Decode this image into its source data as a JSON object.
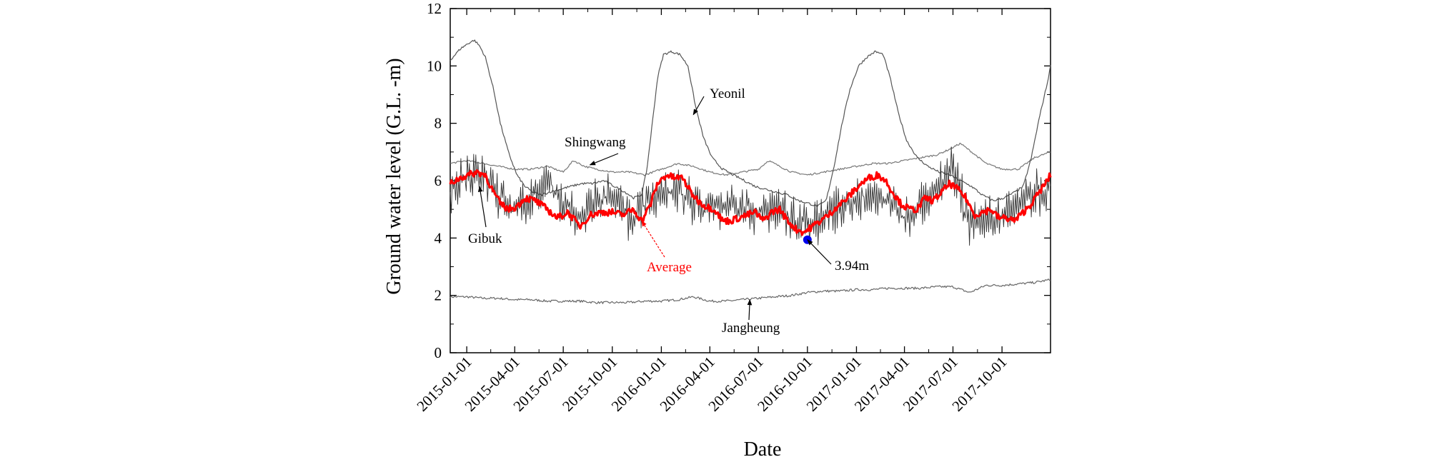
{
  "chart_data": {
    "type": "line",
    "title": "",
    "xlabel": "Date",
    "ylabel": "Ground water level (G.L. -m)",
    "ylim": [
      0,
      12
    ],
    "yticks": [
      0,
      2,
      4,
      6,
      8,
      10,
      12
    ],
    "xlim": [
      "2014-12-01",
      "2017-12-31"
    ],
    "xticks": [
      "2015-01-01",
      "2015-04-01",
      "2015-07-01",
      "2015-10-01",
      "2016-01-01",
      "2016-04-01",
      "2016-07-01",
      "2016-10-01",
      "2017-01-01",
      "2017-04-01",
      "2017-07-01",
      "2017-10-01"
    ],
    "series": [
      {
        "name": "Yeonil",
        "color": "#555555",
        "x": [
          "2014-12-01",
          "2014-12-20",
          "2015-01-05",
          "2015-01-15",
          "2015-01-25",
          "2015-02-05",
          "2015-02-20",
          "2015-03-05",
          "2015-03-20",
          "2015-04-05",
          "2015-04-20",
          "2015-05-05",
          "2015-05-20",
          "2015-06-05",
          "2015-06-25",
          "2015-07-15",
          "2015-08-05",
          "2015-08-25",
          "2015-09-15",
          "2015-10-05",
          "2015-10-25",
          "2015-11-10",
          "2015-11-25",
          "2015-12-05",
          "2015-12-15",
          "2015-12-25",
          "2016-01-05",
          "2016-01-20",
          "2016-02-05",
          "2016-02-20",
          "2016-03-05",
          "2016-03-20",
          "2016-04-05",
          "2016-04-25",
          "2016-05-15",
          "2016-06-05",
          "2016-06-25",
          "2016-07-15",
          "2016-08-05",
          "2016-08-25",
          "2016-09-15",
          "2016-10-05",
          "2016-10-20",
          "2016-11-05",
          "2016-11-20",
          "2016-12-05",
          "2016-12-20",
          "2017-01-05",
          "2017-01-20",
          "2017-02-05",
          "2017-02-20",
          "2017-03-05",
          "2017-03-20",
          "2017-04-05",
          "2017-04-25",
          "2017-05-15",
          "2017-06-05",
          "2017-06-25",
          "2017-07-15",
          "2017-08-05",
          "2017-08-25",
          "2017-09-15",
          "2017-10-05",
          "2017-10-25",
          "2017-11-10",
          "2017-11-25",
          "2017-12-10",
          "2017-12-25",
          "2017-12-31"
        ],
        "values": [
          10.2,
          10.6,
          10.8,
          10.9,
          10.7,
          10.3,
          9.2,
          8.0,
          7.0,
          6.2,
          5.8,
          5.6,
          5.5,
          5.6,
          5.7,
          5.8,
          5.9,
          5.9,
          6.0,
          5.8,
          5.6,
          5.4,
          5.5,
          6.4,
          8.0,
          9.6,
          10.4,
          10.5,
          10.4,
          10.0,
          8.6,
          7.5,
          6.8,
          6.4,
          6.2,
          6.0,
          5.8,
          5.7,
          5.6,
          5.5,
          5.3,
          5.2,
          5.1,
          5.3,
          6.5,
          8.0,
          9.2,
          10.0,
          10.3,
          10.5,
          10.4,
          9.6,
          8.4,
          7.4,
          6.8,
          6.5,
          6.3,
          6.2,
          6.0,
          5.8,
          5.5,
          5.3,
          5.4,
          5.6,
          5.8,
          6.8,
          8.2,
          9.4,
          10.0
        ]
      },
      {
        "name": "Shingwang",
        "color": "#777777",
        "x": [
          "2014-12-01",
          "2015-01-01",
          "2015-02-01",
          "2015-03-01",
          "2015-04-01",
          "2015-05-01",
          "2015-06-01",
          "2015-07-01",
          "2015-07-20",
          "2015-08-10",
          "2015-09-01",
          "2015-10-01",
          "2015-11-01",
          "2015-12-01",
          "2016-01-01",
          "2016-02-01",
          "2016-03-01",
          "2016-04-01",
          "2016-05-01",
          "2016-06-01",
          "2016-07-01",
          "2016-07-20",
          "2016-08-10",
          "2016-09-01",
          "2016-10-01",
          "2016-11-01",
          "2016-12-01",
          "2017-01-01",
          "2017-02-01",
          "2017-03-01",
          "2017-04-01",
          "2017-05-01",
          "2017-06-01",
          "2017-06-25",
          "2017-07-15",
          "2017-08-05",
          "2017-09-01",
          "2017-10-01",
          "2017-11-01",
          "2017-12-01",
          "2017-12-31"
        ],
        "values": [
          6.6,
          6.7,
          6.6,
          6.5,
          6.4,
          6.4,
          6.5,
          6.3,
          6.7,
          6.5,
          6.4,
          6.3,
          6.3,
          6.2,
          6.4,
          6.6,
          6.5,
          6.3,
          6.2,
          6.3,
          6.4,
          6.7,
          6.5,
          6.3,
          6.2,
          6.3,
          6.4,
          6.5,
          6.6,
          6.6,
          6.7,
          6.8,
          6.9,
          7.1,
          7.3,
          7.0,
          6.6,
          6.4,
          6.4,
          6.8,
          7.0
        ]
      },
      {
        "name": "Gibuk",
        "color": "#333333",
        "x": [
          "2014-12-01",
          "2015-01-01",
          "2015-02-01",
          "2015-03-01",
          "2015-04-01",
          "2015-05-01",
          "2015-06-01",
          "2015-07-01",
          "2015-08-01",
          "2015-09-01",
          "2015-10-01",
          "2015-11-01",
          "2015-12-01",
          "2016-01-01",
          "2016-02-01",
          "2016-03-01",
          "2016-04-01",
          "2016-05-01",
          "2016-06-01",
          "2016-07-01",
          "2016-08-01",
          "2016-09-01",
          "2016-10-01",
          "2016-11-01",
          "2016-12-01",
          "2017-01-01",
          "2017-02-01",
          "2017-03-01",
          "2017-04-01",
          "2017-05-01",
          "2017-06-01",
          "2017-07-01",
          "2017-08-01",
          "2017-09-01",
          "2017-10-01",
          "2017-11-01",
          "2017-12-01",
          "2017-12-31"
        ],
        "values": [
          5.7,
          6.0,
          6.2,
          5.5,
          5.0,
          5.3,
          6.1,
          5.2,
          4.7,
          5.3,
          5.6,
          4.8,
          5.2,
          5.6,
          5.6,
          5.3,
          5.0,
          5.1,
          5.2,
          4.9,
          5.0,
          4.6,
          4.4,
          4.8,
          5.0,
          5.3,
          5.4,
          5.3,
          4.7,
          5.2,
          5.6,
          6.5,
          4.4,
          4.8,
          4.9,
          5.2,
          5.5,
          5.8
        ]
      },
      {
        "name": "Average",
        "color": "#ff0000",
        "x": [
          "2014-12-01",
          "2014-12-20",
          "2015-01-05",
          "2015-01-20",
          "2015-02-05",
          "2015-02-20",
          "2015-03-05",
          "2015-03-20",
          "2015-04-05",
          "2015-04-20",
          "2015-05-10",
          "2015-06-01",
          "2015-06-20",
          "2015-07-10",
          "2015-08-01",
          "2015-08-20",
          "2015-09-10",
          "2015-10-01",
          "2015-10-20",
          "2015-11-10",
          "2015-11-25",
          "2015-12-10",
          "2015-12-25",
          "2016-01-10",
          "2016-01-25",
          "2016-02-10",
          "2016-02-25",
          "2016-03-10",
          "2016-03-25",
          "2016-04-10",
          "2016-04-25",
          "2016-05-10",
          "2016-05-25",
          "2016-06-10",
          "2016-06-25",
          "2016-07-10",
          "2016-07-25",
          "2016-08-10",
          "2016-08-25",
          "2016-09-10",
          "2016-09-25",
          "2016-10-10",
          "2016-10-25",
          "2016-11-10",
          "2016-11-25",
          "2016-12-10",
          "2016-12-25",
          "2017-01-10",
          "2017-01-25",
          "2017-02-10",
          "2017-02-25",
          "2017-03-10",
          "2017-03-25",
          "2017-04-10",
          "2017-04-25",
          "2017-05-10",
          "2017-05-25",
          "2017-06-10",
          "2017-06-25",
          "2017-07-10",
          "2017-07-25",
          "2017-08-10",
          "2017-08-25",
          "2017-09-10",
          "2017-09-25",
          "2017-10-10",
          "2017-10-25",
          "2017-11-10",
          "2017-11-25",
          "2017-12-10",
          "2017-12-25",
          "2017-12-31"
        ],
        "values": [
          5.9,
          6.1,
          6.2,
          6.3,
          6.2,
          5.6,
          5.2,
          5.0,
          5.1,
          5.4,
          5.3,
          5.0,
          4.7,
          4.9,
          4.4,
          4.8,
          4.9,
          4.9,
          4.8,
          5.0,
          4.6,
          5.1,
          5.9,
          6.2,
          6.1,
          6.1,
          5.6,
          5.3,
          5.1,
          5.0,
          4.6,
          4.6,
          4.7,
          4.8,
          4.9,
          4.6,
          4.9,
          5.0,
          4.6,
          4.3,
          4.2,
          4.4,
          4.6,
          4.8,
          5.1,
          5.3,
          5.6,
          5.9,
          6.1,
          6.2,
          6.0,
          5.6,
          5.2,
          5.0,
          5.0,
          5.4,
          5.3,
          5.6,
          5.9,
          5.7,
          5.4,
          4.8,
          4.9,
          5.0,
          4.7,
          4.7,
          4.6,
          4.9,
          5.2,
          5.6,
          6.0,
          6.2
        ]
      },
      {
        "name": "Jangheung",
        "color": "#666666",
        "x": [
          "2014-12-01",
          "2015-01-01",
          "2015-02-01",
          "2015-03-01",
          "2015-04-01",
          "2015-05-01",
          "2015-06-01",
          "2015-07-01",
          "2015-08-01",
          "2015-09-01",
          "2015-10-01",
          "2015-11-01",
          "2015-12-01",
          "2016-01-01",
          "2016-02-01",
          "2016-03-01",
          "2016-04-01",
          "2016-05-01",
          "2016-06-01",
          "2016-07-01",
          "2016-08-01",
          "2016-09-01",
          "2016-10-01",
          "2016-11-01",
          "2016-12-01",
          "2017-01-01",
          "2017-02-01",
          "2017-03-01",
          "2017-04-01",
          "2017-05-01",
          "2017-06-01",
          "2017-07-01",
          "2017-08-01",
          "2017-09-01",
          "2017-10-01",
          "2017-11-01",
          "2017-12-01",
          "2017-12-31"
        ],
        "values": [
          1.95,
          1.95,
          1.9,
          1.9,
          1.85,
          1.85,
          1.8,
          1.8,
          1.8,
          1.75,
          1.75,
          1.75,
          1.8,
          1.8,
          1.85,
          1.95,
          1.8,
          1.8,
          1.85,
          1.9,
          1.95,
          2.0,
          2.1,
          2.15,
          2.15,
          2.2,
          2.2,
          2.25,
          2.25,
          2.25,
          2.3,
          2.3,
          2.1,
          2.35,
          2.35,
          2.4,
          2.45,
          2.55
        ]
      }
    ],
    "marker": {
      "x": "2016-10-01",
      "y": 3.94,
      "label": "3.94m",
      "color": "#0000ee"
    },
    "annotations": [
      {
        "text": "Yeonil",
        "target_x": "2016-03-01",
        "target_y": 8.3
      },
      {
        "text": "Shingwang",
        "target_x": "2015-08-20",
        "target_y": 6.55
      },
      {
        "text": "Gibuk",
        "target_x": "2015-01-25",
        "target_y": 5.8
      },
      {
        "text": "Average",
        "target_x": "2015-11-25",
        "target_y": 4.6,
        "color": "#ff0000"
      },
      {
        "text": "3.94m",
        "target_x": "2016-10-01",
        "target_y": 3.94
      },
      {
        "text": "Jangheung",
        "target_x": "2016-06-15",
        "target_y": 1.85
      }
    ]
  }
}
